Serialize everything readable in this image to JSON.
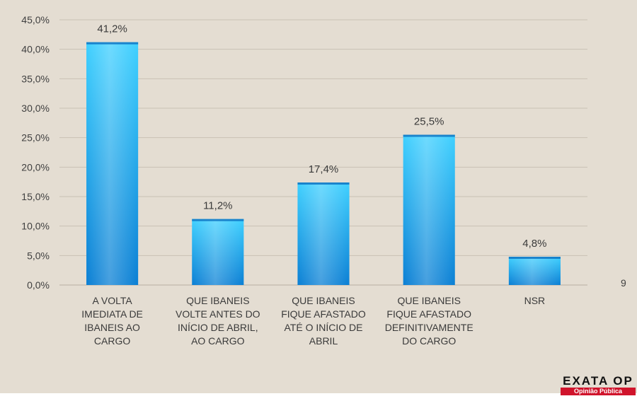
{
  "page_number": "9",
  "logo": {
    "main": "EXATA OP",
    "sub": "Opinião Pública"
  },
  "colors": {
    "bar_top": "#3fd0ff",
    "bar_bottom": "#0a7fd4",
    "grid": "#c9c1b4",
    "background": "#e4ddd2"
  },
  "chart_data": {
    "type": "bar",
    "categories": [
      [
        "A VOLTA",
        "IMEDIATA DE",
        "IBANEIS AO",
        "CARGO"
      ],
      [
        "QUE IBANEIS",
        "VOLTE ANTES DO",
        "INÍCIO DE ABRIL,",
        "AO CARGO"
      ],
      [
        "QUE IBANEIS",
        "FIQUE AFASTADO",
        "ATÉ O INÍCIO DE",
        "ABRIL"
      ],
      [
        "QUE IBANEIS",
        "FIQUE AFASTADO",
        "DEFINITIVAMENTE",
        "DO CARGO"
      ],
      [
        "NSR"
      ]
    ],
    "values": [
      41.2,
      11.2,
      17.4,
      25.5,
      4.8
    ],
    "data_labels": [
      "41,2%",
      "11,2%",
      "17,4%",
      "25,5%",
      "4,8%"
    ],
    "yticks": [
      "0,0%",
      "5,0%",
      "10,0%",
      "15,0%",
      "20,0%",
      "25,0%",
      "30,0%",
      "35,0%",
      "40,0%",
      "45,0%"
    ],
    "ylim": [
      0,
      45
    ],
    "grid": true
  }
}
